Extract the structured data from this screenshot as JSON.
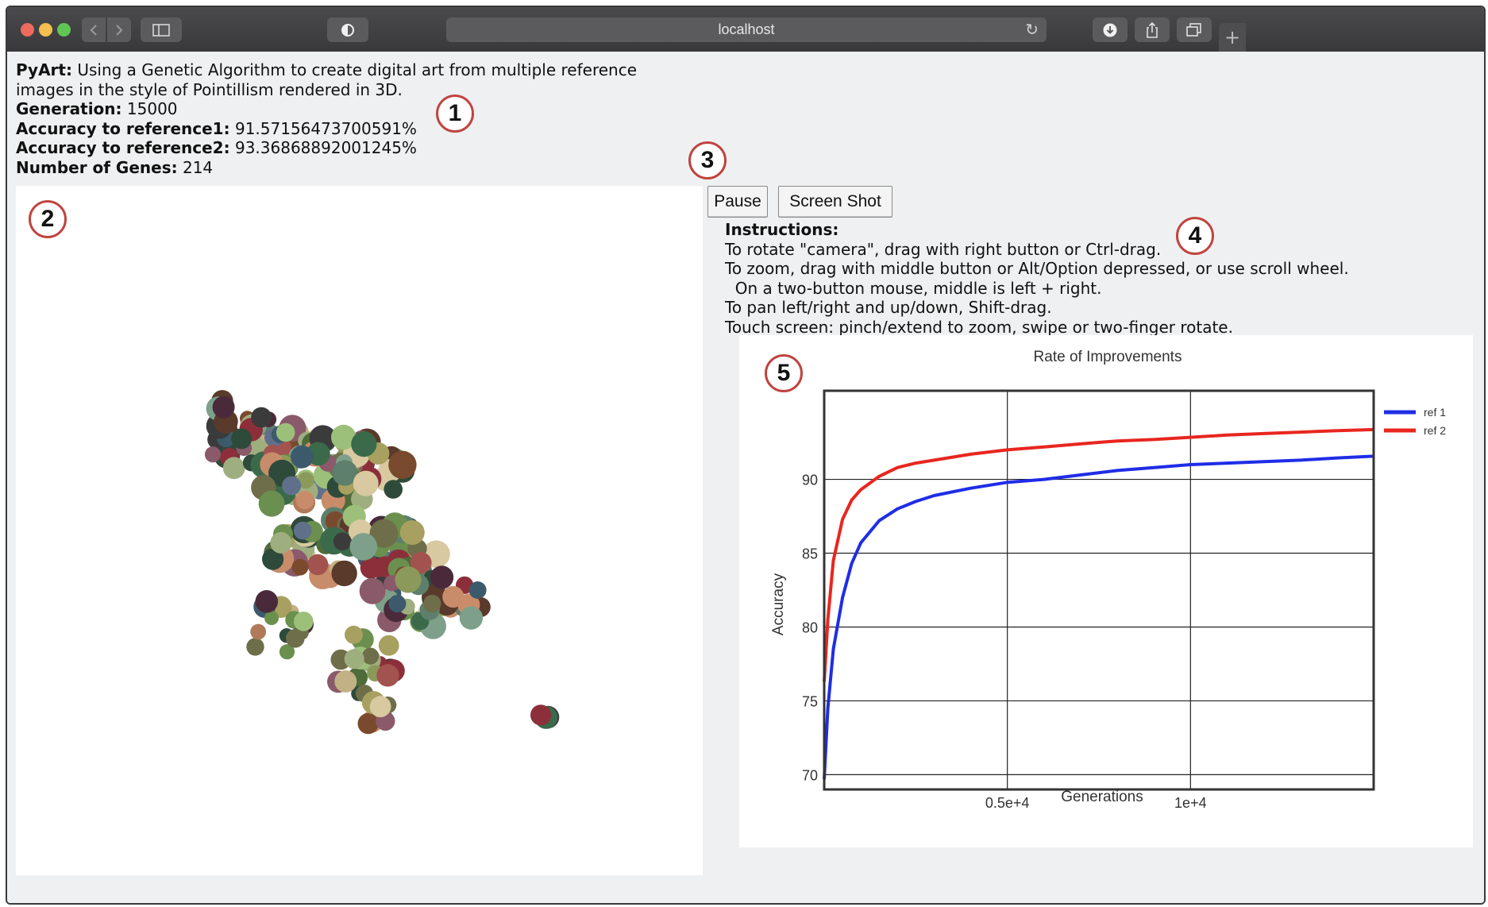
{
  "browser": {
    "url": "localhost",
    "traffic_colors": [
      "#ed6a5e",
      "#f5bf4f",
      "#61c554"
    ]
  },
  "info": {
    "title_label": "PyArt:",
    "title_text": " Using a Genetic Algorithm to create digital art from multiple reference",
    "title_text_2": "images in the style of Pointillism rendered in 3D.",
    "generation_label": "Generation:",
    "generation_value": " 15000",
    "acc1_label": "Accuracy to reference1:",
    "acc1_value": " 91.57156473700591%",
    "acc2_label": "Accuracy to reference2:",
    "acc2_value": " 93.36868892001245%",
    "genes_label": "Number of Genes:",
    "genes_value": " 214"
  },
  "controls": {
    "pause_label": "Pause",
    "screenshot_label": "Screen Shot"
  },
  "instructions": {
    "heading": "Instructions:",
    "lines": [
      "To rotate \"camera\", drag with right button or Ctrl-drag.",
      "To zoom, drag with middle button or Alt/Option depressed, or use scroll wheel.",
      "  On a two-button mouse, middle is left + right.",
      "To pan left/right and up/down, Shift-drag.",
      "Touch screen: pinch/extend to zoom, swipe or two-finger rotate."
    ]
  },
  "markers": [
    "1",
    "2",
    "3",
    "4",
    "5"
  ],
  "chart_data": {
    "type": "line",
    "title": "Rate of Improvements",
    "xlabel": "Generations",
    "ylabel": "Accuracy",
    "xlim": [
      0,
      15000
    ],
    "ylim": [
      69,
      96
    ],
    "x_ticks": [
      5000,
      10000
    ],
    "x_tick_labels": [
      "0.5e+4",
      "1e+4"
    ],
    "y_ticks": [
      70,
      75,
      80,
      85,
      90
    ],
    "y_tick_labels": [
      "70",
      "75",
      "80",
      "85",
      "90"
    ],
    "grid": true,
    "legend_position": "right",
    "series": [
      {
        "name": "ref 1",
        "color": "#1f2de6",
        "x": [
          0,
          100,
          250,
          500,
          750,
          1000,
          1500,
          2000,
          2500,
          3000,
          4000,
          5000,
          6000,
          7000,
          8000,
          9000,
          10000,
          11000,
          12000,
          13000,
          14000,
          15000
        ],
        "y": [
          69.7,
          74.5,
          78.5,
          82.0,
          84.3,
          85.7,
          87.2,
          88.0,
          88.5,
          88.9,
          89.4,
          89.8,
          90.0,
          90.3,
          90.6,
          90.8,
          91.0,
          91.1,
          91.2,
          91.3,
          91.45,
          91.57
        ]
      },
      {
        "name": "ref 2",
        "color": "#e8261f",
        "x": [
          0,
          100,
          250,
          500,
          750,
          1000,
          1500,
          2000,
          2500,
          3000,
          4000,
          5000,
          6000,
          7000,
          8000,
          9000,
          10000,
          11000,
          12000,
          13000,
          14000,
          15000
        ],
        "y": [
          76.3,
          80.5,
          84.5,
          87.3,
          88.6,
          89.3,
          90.2,
          90.8,
          91.1,
          91.3,
          91.7,
          92.0,
          92.2,
          92.4,
          92.6,
          92.7,
          92.85,
          93.0,
          93.1,
          93.2,
          93.3,
          93.37
        ]
      }
    ]
  },
  "gene_colors": [
    "#6b8f4e",
    "#8b9a5b",
    "#4f6b3a",
    "#a3534f",
    "#3b3b3b",
    "#9fae7f",
    "#7a4a2e",
    "#5d7f6b",
    "#c2b184",
    "#3d5a6c",
    "#8c2f3a",
    "#b07a5a",
    "#6e6e4a",
    "#2e4a3a",
    "#9cc07a",
    "#c98c6a",
    "#5a3a2a",
    "#7ea08a",
    "#d8c9a0",
    "#4a2a3a",
    "#a8a060",
    "#60708a",
    "#8a5a6a",
    "#3a6a4a"
  ]
}
